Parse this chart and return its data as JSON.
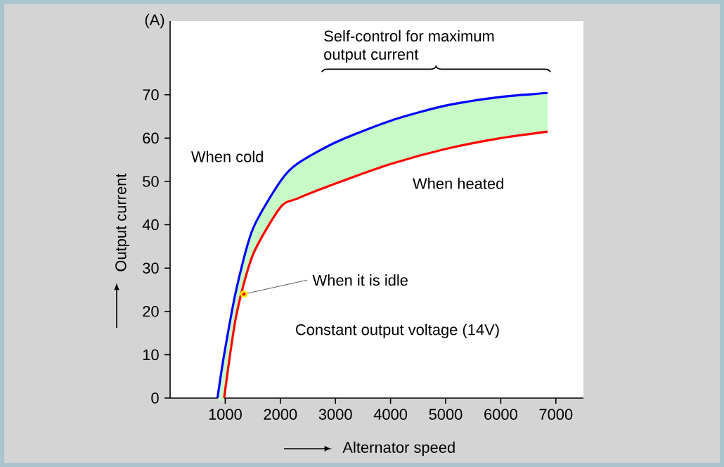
{
  "chart_data": {
    "type": "line",
    "xlabel": "Alternator speed",
    "ylabel": "Output current",
    "x": [
      860,
      980,
      1200,
      1500,
      2000,
      2300,
      3000,
      4000,
      5000,
      6000,
      6850
    ],
    "series": [
      {
        "name": "When cold",
        "color": "#0000ff",
        "values": [
          0,
          10,
          25,
          39,
          50,
          54,
          59,
          64,
          67.5,
          69.5,
          70.4
        ],
        "lower": [
          0,
          0,
          19,
          33,
          44,
          46,
          49.5,
          54,
          57.5,
          60,
          61.5
        ],
        "upper": [
          0,
          10,
          25,
          39,
          50,
          54,
          59,
          64,
          67.5,
          69.5,
          70.4
        ]
      },
      {
        "name": "When heated",
        "color": "#ff0000",
        "values": [
          null,
          0,
          19,
          33,
          44,
          46,
          49.5,
          54,
          57.5,
          60,
          61.5
        ]
      }
    ],
    "xlim": [
      0,
      7500
    ],
    "ylim": [
      0,
      87
    ],
    "xticks": [
      1000,
      2000,
      3000,
      4000,
      5000,
      6000,
      7000
    ],
    "yticks": [
      0,
      10,
      20,
      30,
      40,
      50,
      60,
      70
    ],
    "annotations": [
      "(A)",
      "Self-control for maximum output current",
      {
        "text": "When it is idle",
        "x": 1340,
        "y": 24
      },
      "Constant output voltage (14V)"
    ],
    "grid": false,
    "marker": "none",
    "line_style": "solid"
  }
}
